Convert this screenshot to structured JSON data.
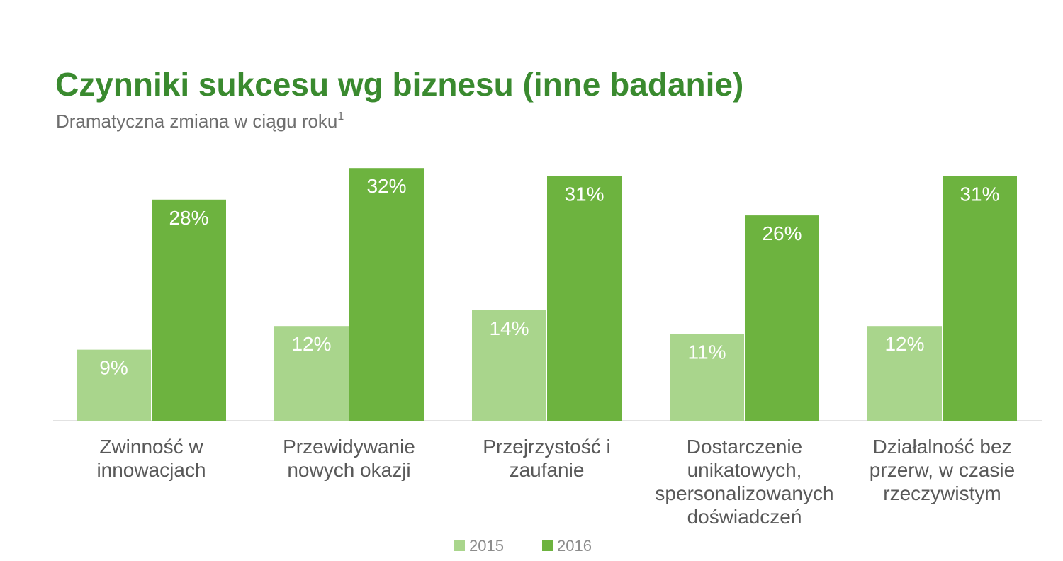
{
  "title": "Czynniki sukcesu wg biznesu (inne badanie)",
  "subtitle": "Dramatyczna zmiana w ciągu roku",
  "subtitle_footnote": "1",
  "chart_data": {
    "type": "bar",
    "categories": [
      [
        "Zwinność w",
        "innowacjach"
      ],
      [
        "Przewidywanie",
        "nowych okazji"
      ],
      [
        "Przejrzystość i",
        "zaufanie"
      ],
      [
        "Dostarczenie",
        "unikatowych,",
        "spersonalizowanych",
        "doświadczeń"
      ],
      [
        "Działalność bez",
        "przerw, w czasie",
        "rzeczywistym"
      ]
    ],
    "series": [
      {
        "name": "2015",
        "values": [
          9,
          12,
          14,
          11,
          12
        ],
        "color": "#a9d58c",
        "labels": [
          "9%",
          "12%",
          "14%",
          "11%",
          "12%"
        ]
      },
      {
        "name": "2016",
        "values": [
          28,
          32,
          31,
          26,
          31
        ],
        "color": "#6db33f",
        "labels": [
          "28%",
          "32%",
          "31%",
          "26%",
          "31%"
        ]
      }
    ],
    "ylim": [
      0,
      32
    ],
    "grid": false,
    "legend_position": "bottom-center",
    "data_labels": "inside-top"
  },
  "colors": {
    "title": "#3a8a2f",
    "subtitle": "#6e6e6e",
    "axis_line": "#d9d9d9",
    "category_text": "#595959",
    "legend_text": "#8c8c8c",
    "value_text": "#ffffff"
  }
}
